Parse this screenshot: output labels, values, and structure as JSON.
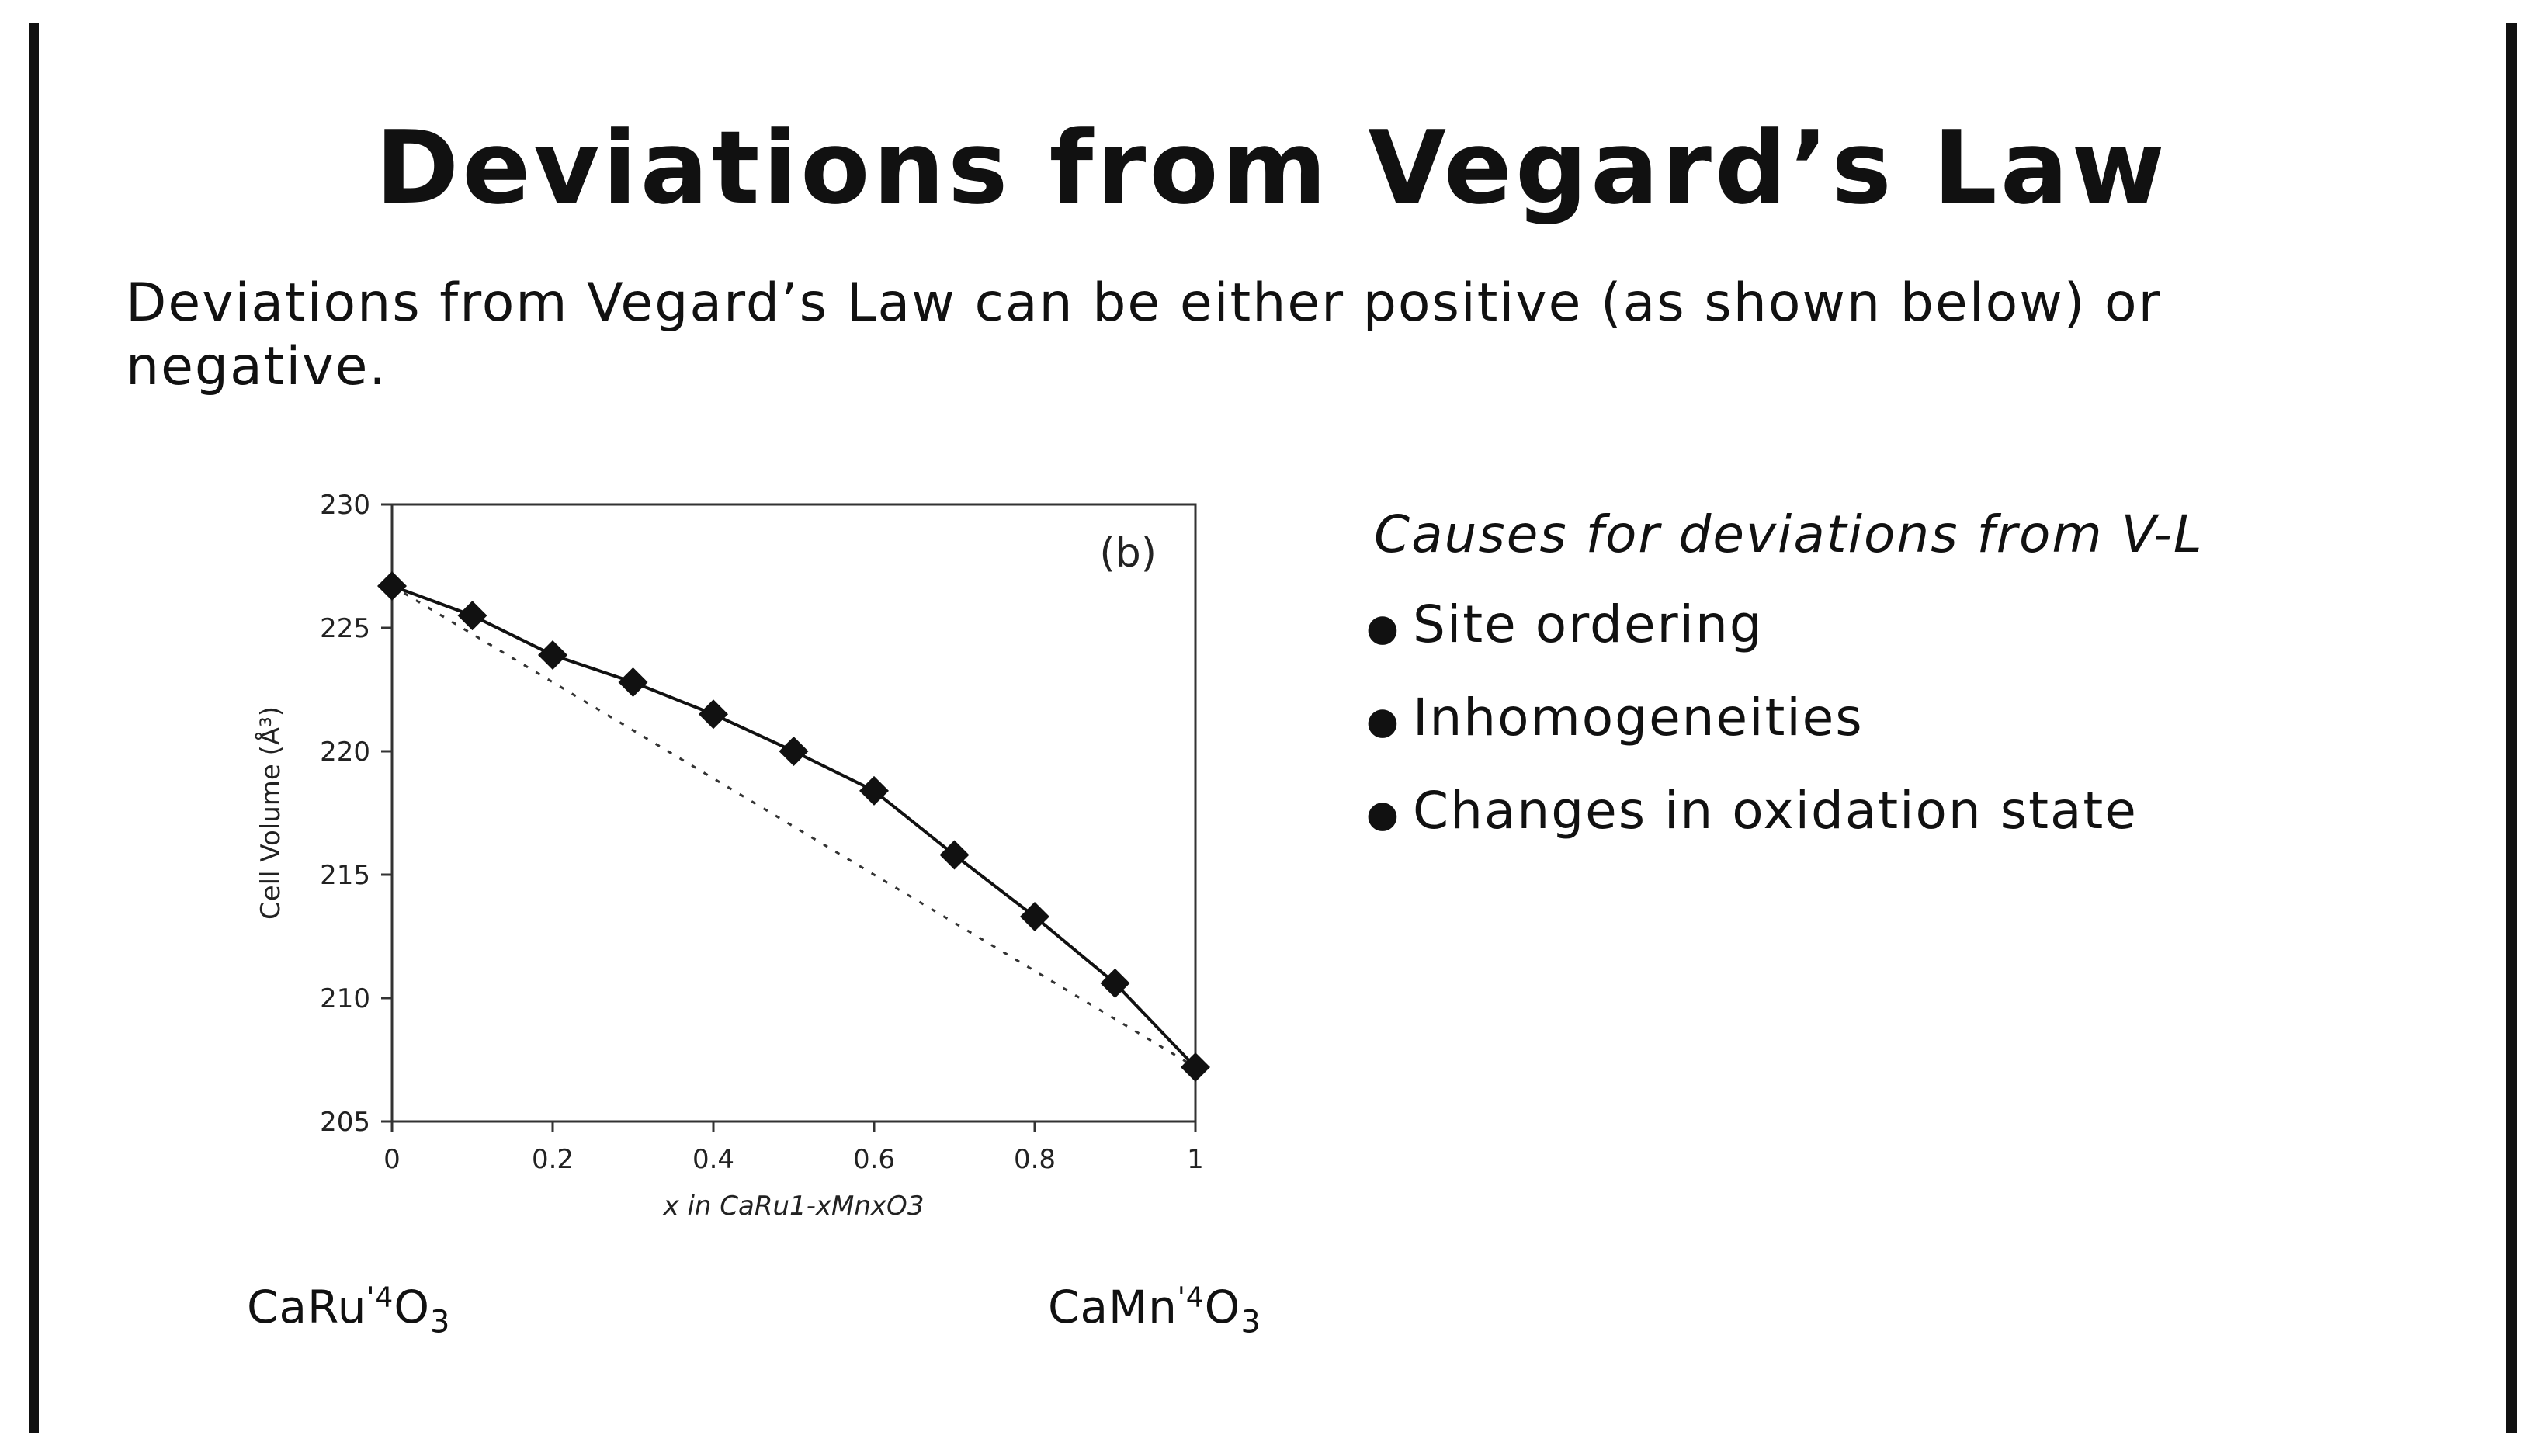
{
  "slide": {
    "title": "Deviations from Vegard’s Law",
    "intro": "Deviations from Vegard’s Law can be either positive (as shown below) or negative.",
    "causes_title": "Causes for deviations from V-L",
    "causes": [
      "Site ordering",
      "Inhomogeneities",
      "Changes in oxidation state"
    ],
    "left_formula": {
      "base": "CaRu",
      "sup": "'4",
      "o": "O",
      "sub": "3"
    },
    "right_formula": {
      "base": "CaMn",
      "sup": "'4",
      "o": "O",
      "sub": "3"
    }
  },
  "chart_data": {
    "type": "line",
    "panel_label": "(b)",
    "xlabel": "x in CaRu1-xMnxO3",
    "ylabel": "Cell Volume (Å³)",
    "xlim": [
      0,
      1
    ],
    "ylim": [
      205,
      230
    ],
    "x_ticks": [
      "0",
      "0.2",
      "0.4",
      "0.6",
      "0.8",
      "1"
    ],
    "y_ticks": [
      "205",
      "210",
      "215",
      "220",
      "225",
      "230"
    ],
    "x": [
      0,
      0.1,
      0.2,
      0.3,
      0.4,
      0.5,
      0.6,
      0.7,
      0.8,
      0.9,
      1.0
    ],
    "series": [
      {
        "values": [
          226.7,
          225.5,
          223.9,
          222.8,
          221.5,
          220.0,
          218.4,
          215.8,
          213.3,
          210.6,
          207.2
        ],
        "style": "solid",
        "marker": "diamond"
      },
      {
        "values": [
          226.7,
          207.2
        ],
        "x": [
          0,
          1
        ],
        "style": "dotted"
      }
    ],
    "grid": false
  }
}
